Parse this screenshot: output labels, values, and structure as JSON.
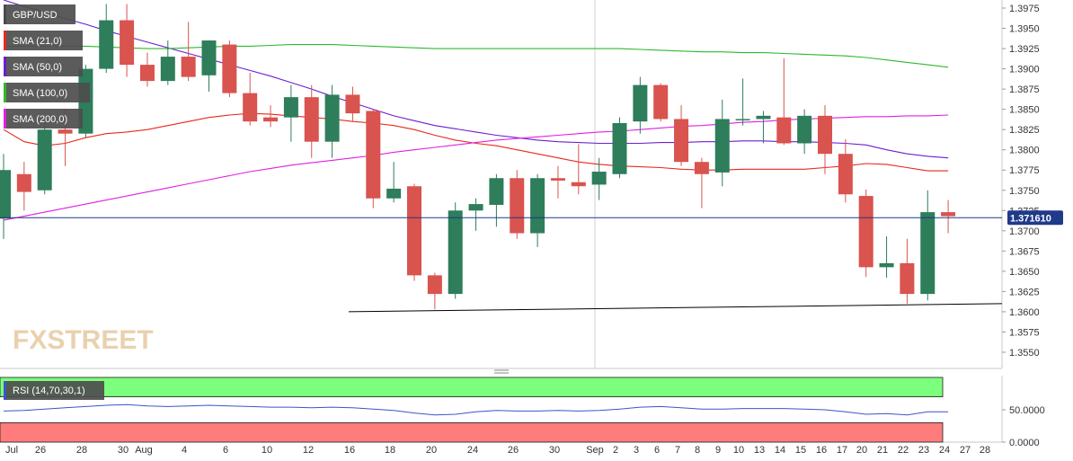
{
  "chart_data": [
    {
      "type": "candlestick",
      "symbol": "GBP/USD",
      "watermark": "FXSTREET",
      "x_tick_labels": [
        "Jul",
        "26",
        "28",
        "30",
        "Aug",
        "4",
        "6",
        "10",
        "12",
        "16",
        "18",
        "20",
        "24",
        "26",
        "30",
        "Sep",
        "2",
        "3",
        "6",
        "7",
        "8",
        "9",
        "10",
        "13",
        "14",
        "15",
        "16",
        "17",
        "20",
        "21",
        "22",
        "23",
        "24",
        "27",
        "28"
      ],
      "y_ticks": [
        "1.3975",
        "1.3950",
        "1.3925",
        "1.3900",
        "1.3875",
        "1.3850",
        "1.3825",
        "1.3800",
        "1.3775",
        "1.3750",
        "1.3725",
        "1.3700",
        "1.3675",
        "1.3650",
        "1.3625",
        "1.3600",
        "1.3575",
        "1.3550"
      ],
      "ylim": [
        1.353,
        1.3985
      ],
      "last_price": "1.371610",
      "candles": [
        {
          "o": 1.3715,
          "h": 1.3795,
          "l": 1.369,
          "c": 1.3775
        },
        {
          "o": 1.377,
          "h": 1.3785,
          "l": 1.3725,
          "c": 1.3748
        },
        {
          "o": 1.375,
          "h": 1.3835,
          "l": 1.3745,
          "c": 1.3825
        },
        {
          "o": 1.3825,
          "h": 1.385,
          "l": 1.378,
          "c": 1.382
        },
        {
          "o": 1.382,
          "h": 1.3905,
          "l": 1.3815,
          "c": 1.39
        },
        {
          "o": 1.39,
          "h": 1.398,
          "l": 1.3895,
          "c": 1.396
        },
        {
          "o": 1.396,
          "h": 1.398,
          "l": 1.389,
          "c": 1.3905
        },
        {
          "o": 1.3905,
          "h": 1.392,
          "l": 1.3878,
          "c": 1.3885
        },
        {
          "o": 1.3885,
          "h": 1.3935,
          "l": 1.388,
          "c": 1.3915
        },
        {
          "o": 1.3915,
          "h": 1.3958,
          "l": 1.3885,
          "c": 1.389
        },
        {
          "o": 1.3892,
          "h": 1.3935,
          "l": 1.3872,
          "c": 1.3935
        },
        {
          "o": 1.393,
          "h": 1.3935,
          "l": 1.3865,
          "c": 1.387
        },
        {
          "o": 1.387,
          "h": 1.3895,
          "l": 1.383,
          "c": 1.3835
        },
        {
          "o": 1.384,
          "h": 1.3855,
          "l": 1.3828,
          "c": 1.3835
        },
        {
          "o": 1.384,
          "h": 1.388,
          "l": 1.381,
          "c": 1.3865
        },
        {
          "o": 1.3865,
          "h": 1.388,
          "l": 1.379,
          "c": 1.381
        },
        {
          "o": 1.381,
          "h": 1.388,
          "l": 1.379,
          "c": 1.3868
        },
        {
          "o": 1.3868,
          "h": 1.3878,
          "l": 1.3835,
          "c": 1.3845
        },
        {
          "o": 1.3848,
          "h": 1.385,
          "l": 1.3728,
          "c": 1.374
        },
        {
          "o": 1.374,
          "h": 1.3785,
          "l": 1.3735,
          "c": 1.3752
        },
        {
          "o": 1.3755,
          "h": 1.3758,
          "l": 1.3638,
          "c": 1.3645
        },
        {
          "o": 1.3645,
          "h": 1.3648,
          "l": 1.3603,
          "c": 1.3622
        },
        {
          "o": 1.3622,
          "h": 1.3735,
          "l": 1.3616,
          "c": 1.3725
        },
        {
          "o": 1.3725,
          "h": 1.374,
          "l": 1.37,
          "c": 1.3733
        },
        {
          "o": 1.3732,
          "h": 1.377,
          "l": 1.3705,
          "c": 1.3765
        },
        {
          "o": 1.3765,
          "h": 1.3775,
          "l": 1.369,
          "c": 1.3697
        },
        {
          "o": 1.3697,
          "h": 1.377,
          "l": 1.368,
          "c": 1.3765
        },
        {
          "o": 1.3765,
          "h": 1.378,
          "l": 1.374,
          "c": 1.3762
        },
        {
          "o": 1.376,
          "h": 1.3807,
          "l": 1.3745,
          "c": 1.3755
        },
        {
          "o": 1.3757,
          "h": 1.379,
          "l": 1.3738,
          "c": 1.3773
        },
        {
          "o": 1.377,
          "h": 1.384,
          "l": 1.3765,
          "c": 1.3833
        },
        {
          "o": 1.3835,
          "h": 1.389,
          "l": 1.382,
          "c": 1.388
        },
        {
          "o": 1.388,
          "h": 1.3882,
          "l": 1.3835,
          "c": 1.3838
        },
        {
          "o": 1.3838,
          "h": 1.3855,
          "l": 1.378,
          "c": 1.3785
        },
        {
          "o": 1.3785,
          "h": 1.379,
          "l": 1.3728,
          "c": 1.377
        },
        {
          "o": 1.3772,
          "h": 1.3862,
          "l": 1.3755,
          "c": 1.3838
        },
        {
          "o": 1.3838,
          "h": 1.3888,
          "l": 1.383,
          "c": 1.3838
        },
        {
          "o": 1.3838,
          "h": 1.3848,
          "l": 1.3808,
          "c": 1.3842
        },
        {
          "o": 1.384,
          "h": 1.3913,
          "l": 1.3806,
          "c": 1.3808
        },
        {
          "o": 1.3808,
          "h": 1.385,
          "l": 1.3795,
          "c": 1.3842
        },
        {
          "o": 1.3842,
          "h": 1.3855,
          "l": 1.377,
          "c": 1.3795
        },
        {
          "o": 1.3795,
          "h": 1.3813,
          "l": 1.3735,
          "c": 1.3745
        },
        {
          "o": 1.3743,
          "h": 1.3751,
          "l": 1.3643,
          "c": 1.3655
        },
        {
          "o": 1.3655,
          "h": 1.3693,
          "l": 1.3642,
          "c": 1.366
        },
        {
          "o": 1.366,
          "h": 1.369,
          "l": 1.361,
          "c": 1.3622
        },
        {
          "o": 1.3622,
          "h": 1.375,
          "l": 1.3614,
          "c": 1.3723
        },
        {
          "o": 1.3723,
          "h": 1.3738,
          "l": 1.3697,
          "c": 1.3718
        }
      ],
      "sma": [
        {
          "name": "SMA (21,0)",
          "color": "#e8281e",
          "values": [
            1.3825,
            1.381,
            1.3805,
            1.3808,
            1.3815,
            1.382,
            1.3822,
            1.3825,
            1.383,
            1.3835,
            1.384,
            1.3843,
            1.3845,
            1.3844,
            1.3842,
            1.384,
            1.3838,
            1.3835,
            1.3833,
            1.383,
            1.3825,
            1.3818,
            1.3812,
            1.3808,
            1.3805,
            1.38,
            1.3795,
            1.379,
            1.3785,
            1.3782,
            1.378,
            1.3779,
            1.3778,
            1.3776,
            1.3775,
            1.3775,
            1.3776,
            1.3776,
            1.3776,
            1.3776,
            1.3778,
            1.378,
            1.3783,
            1.3782,
            1.3778,
            1.3774,
            1.3774
          ]
        },
        {
          "name": "SMA (50,0)",
          "color": "#6a1fd0",
          "values": [
            1.3985,
            1.3977,
            1.397,
            1.3962,
            1.3955,
            1.3947,
            1.394,
            1.3933,
            1.3926,
            1.3919,
            1.3912,
            1.3905,
            1.3898,
            1.3891,
            1.3883,
            1.3875,
            1.3866,
            1.3858,
            1.385,
            1.3842,
            1.3836,
            1.383,
            1.3826,
            1.3822,
            1.3818,
            1.3815,
            1.3812,
            1.381,
            1.3809,
            1.3808,
            1.3808,
            1.3808,
            1.3809,
            1.3809,
            1.381,
            1.381,
            1.3811,
            1.3811,
            1.381,
            1.381,
            1.3809,
            1.3808,
            1.3806,
            1.38,
            1.3795,
            1.3792,
            1.379
          ]
        },
        {
          "name": "SMA (100,0)",
          "color": "#2eb82e",
          "values": [
            1.3928,
            1.3928,
            1.3928,
            1.3928,
            1.3928,
            1.3927,
            1.3926,
            1.3925,
            1.3925,
            1.3926,
            1.3927,
            1.3928,
            1.3928,
            1.3929,
            1.393,
            1.393,
            1.393,
            1.3929,
            1.3928,
            1.3927,
            1.3926,
            1.3925,
            1.3925,
            1.3925,
            1.3925,
            1.3925,
            1.3925,
            1.3925,
            1.3925,
            1.3925,
            1.3925,
            1.3924,
            1.3923,
            1.3922,
            1.3921,
            1.3921,
            1.392,
            1.392,
            1.3919,
            1.3918,
            1.3917,
            1.3916,
            1.3914,
            1.3911,
            1.3908,
            1.3905,
            1.3902
          ]
        },
        {
          "name": "SMA (200,0)",
          "color": "#e020e0",
          "values": [
            1.3713,
            1.3718,
            1.3723,
            1.3728,
            1.3733,
            1.3738,
            1.3743,
            1.3748,
            1.3753,
            1.3758,
            1.3763,
            1.3768,
            1.3773,
            1.3777,
            1.3781,
            1.3784,
            1.3787,
            1.379,
            1.3793,
            1.3797,
            1.38,
            1.3803,
            1.3806,
            1.3809,
            1.3812,
            1.3814,
            1.3816,
            1.3818,
            1.382,
            1.3822,
            1.3823,
            1.3825,
            1.3827,
            1.3829,
            1.383,
            1.3832,
            1.3834,
            1.3835,
            1.3837,
            1.3838,
            1.3839,
            1.384,
            1.3841,
            1.3841,
            1.3842,
            1.3842,
            1.3843
          ]
        }
      ],
      "trendline": {
        "from": 1.36,
        "to": 1.361,
        "color": "#000000"
      }
    },
    {
      "type": "line",
      "name": "RSI (14,70,30,1)",
      "y_ticks": [
        "50.0000",
        "0.0000"
      ],
      "ylim": [
        0,
        100
      ],
      "overbought": 70,
      "oversold": 30,
      "line_color": "#3a55c8",
      "zone_colors": {
        "overbought": "#7cff7c",
        "oversold": "#ff7c7c"
      },
      "values": [
        48,
        49,
        51,
        53,
        55,
        57,
        58,
        56,
        55,
        56,
        57,
        56,
        55,
        54,
        54,
        53,
        54,
        53,
        51,
        49,
        45,
        42,
        43,
        47,
        49,
        48,
        48,
        49,
        48,
        49,
        51,
        54,
        55,
        53,
        51,
        51,
        52,
        52,
        52,
        51,
        50,
        47,
        43,
        44,
        42,
        47,
        47
      ]
    }
  ]
}
